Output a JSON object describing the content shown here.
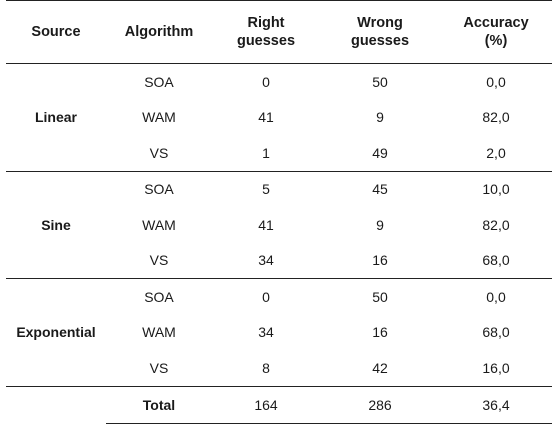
{
  "headers": {
    "source": "Source",
    "algorithm": "Algorithm",
    "right_l1": "Right",
    "right_l2": "guesses",
    "wrong_l1": "Wrong",
    "wrong_l2": "guesses",
    "acc_l1": "Accuracy",
    "acc_l2": "(%)"
  },
  "groups": [
    {
      "source": "Linear",
      "rows": [
        {
          "algorithm": "SOA",
          "right": "0",
          "wrong": "50",
          "accuracy": "0,0"
        },
        {
          "algorithm": "WAM",
          "right": "41",
          "wrong": "9",
          "accuracy": "82,0"
        },
        {
          "algorithm": "VS",
          "right": "1",
          "wrong": "49",
          "accuracy": "2,0"
        }
      ]
    },
    {
      "source": "Sine",
      "rows": [
        {
          "algorithm": "SOA",
          "right": "5",
          "wrong": "45",
          "accuracy": "10,0"
        },
        {
          "algorithm": "WAM",
          "right": "41",
          "wrong": "9",
          "accuracy": "82,0"
        },
        {
          "algorithm": "VS",
          "right": "34",
          "wrong": "16",
          "accuracy": "68,0"
        }
      ]
    },
    {
      "source": "Exponential",
      "rows": [
        {
          "algorithm": "SOA",
          "right": "0",
          "wrong": "50",
          "accuracy": "0,0"
        },
        {
          "algorithm": "WAM",
          "right": "34",
          "wrong": "16",
          "accuracy": "68,0"
        },
        {
          "algorithm": "VS",
          "right": "8",
          "wrong": "42",
          "accuracy": "16,0"
        }
      ]
    }
  ],
  "total": {
    "label": "Total",
    "right": "164",
    "wrong": "286",
    "accuracy": "36,4"
  }
}
